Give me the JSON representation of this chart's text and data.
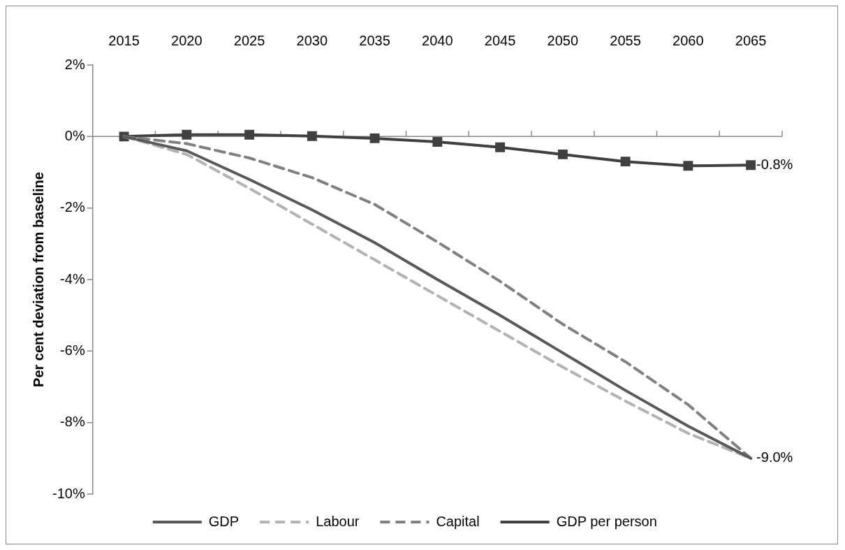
{
  "chart_data": {
    "type": "line",
    "ylabel": "Per cent deviation from baseline",
    "categories": [
      "2015",
      "2020",
      "2025",
      "2030",
      "2035",
      "2040",
      "2045",
      "2050",
      "2055",
      "2060",
      "2065"
    ],
    "ylim": [
      -10,
      2
    ],
    "yticks": [
      {
        "value": -10,
        "label": "-10%"
      },
      {
        "value": -8,
        "label": "-8%"
      },
      {
        "value": -6,
        "label": "-6%"
      },
      {
        "value": -4,
        "label": "-4%"
      },
      {
        "value": -2,
        "label": "-2%"
      },
      {
        "value": 0,
        "label": "0%"
      },
      {
        "value": 2,
        "label": "2%"
      }
    ],
    "grid": false,
    "legend": "bottom",
    "ref_lines": [
      {
        "axis": "y",
        "value": 0,
        "color": "#888888"
      }
    ],
    "series": [
      {
        "name": "GDP",
        "color": "#595959",
        "marker": "none",
        "line_style": "solid",
        "values": [
          0,
          -0.4,
          -1.2,
          -2.05,
          -2.97,
          -4.0,
          -5.0,
          -6.05,
          -7.1,
          -8.1,
          -9.0
        ],
        "value_labels": [
          null,
          null,
          null,
          null,
          null,
          null,
          null,
          null,
          null,
          null,
          "-9.0%"
        ]
      },
      {
        "name": "Labour",
        "color": "#b3b3b3",
        "marker": "none",
        "line_style": "dashed",
        "values": [
          0,
          -0.5,
          -1.45,
          -2.45,
          -3.45,
          -4.45,
          -5.45,
          -6.45,
          -7.4,
          -8.3,
          -9.0
        ]
      },
      {
        "name": "Capital",
        "color": "#808080",
        "marker": "none",
        "line_style": "dashed",
        "values": [
          0,
          -0.2,
          -0.6,
          -1.15,
          -1.9,
          -2.95,
          -4.05,
          -5.25,
          -6.3,
          -7.5,
          -9.0
        ]
      },
      {
        "name": "GDP per person",
        "color": "#404040",
        "marker": "square",
        "line_style": "solid",
        "values": [
          0,
          0.05,
          0.05,
          0.01,
          -0.05,
          -0.15,
          -0.3,
          -0.5,
          -0.7,
          -0.82,
          -0.8
        ],
        "value_labels": [
          null,
          null,
          null,
          null,
          null,
          null,
          null,
          null,
          null,
          null,
          "-0.8%"
        ]
      }
    ]
  }
}
